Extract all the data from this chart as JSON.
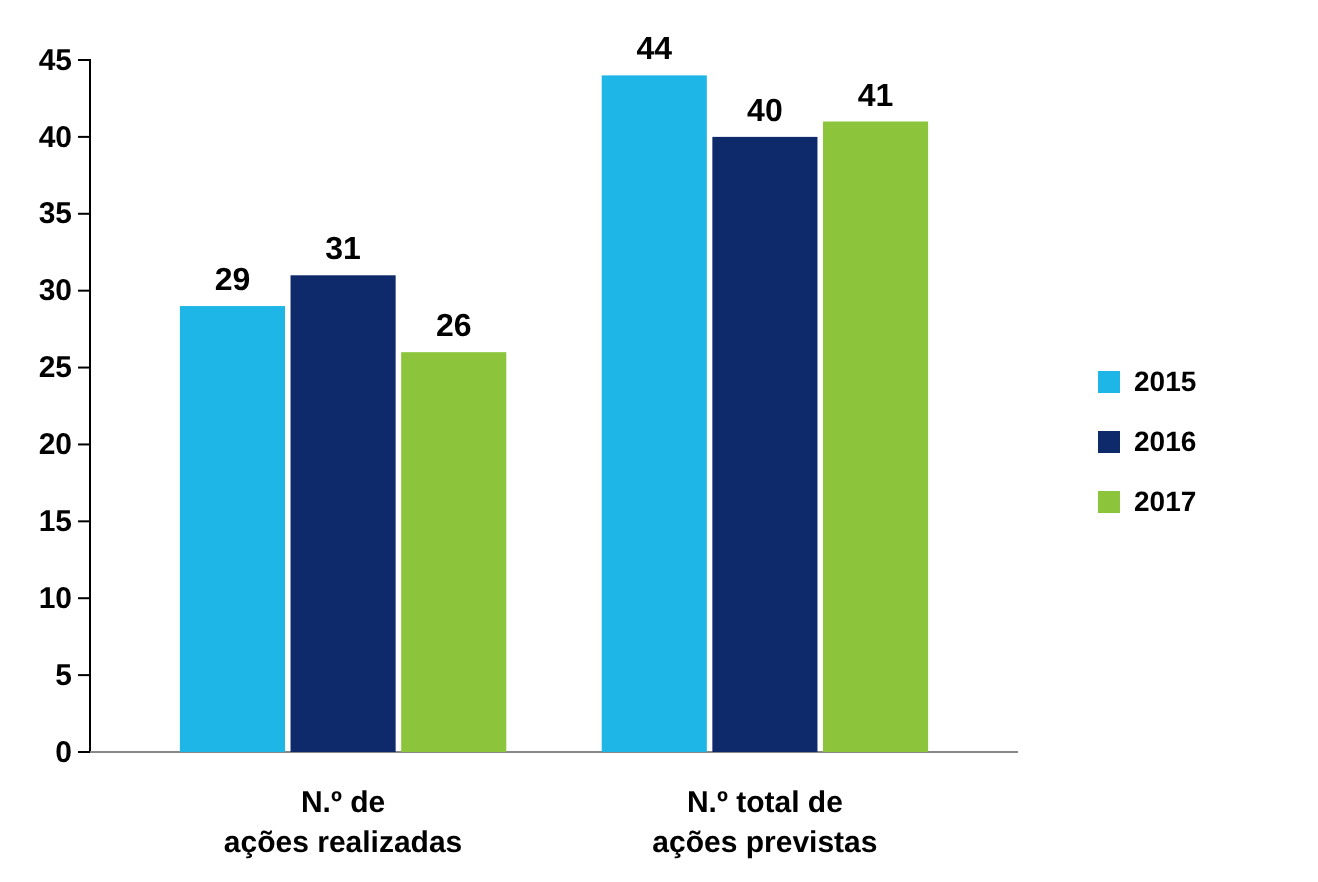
{
  "chart_data": {
    "type": "bar",
    "categories": [
      "N.º de ações realizadas",
      "N.º total de ações previstas"
    ],
    "series": [
      {
        "name": "2015",
        "color": "#1eb6e6",
        "values": [
          29,
          44
        ]
      },
      {
        "name": "2016",
        "color": "#0e2a6b",
        "values": [
          31,
          40
        ]
      },
      {
        "name": "2017",
        "color": "#8cc43c",
        "values": [
          26,
          41
        ]
      }
    ],
    "ylim": [
      0,
      45
    ],
    "yticks": [
      0,
      5,
      10,
      15,
      20,
      25,
      30,
      35,
      40,
      45
    ],
    "data_labels": true,
    "legend": "right",
    "grid": false
  }
}
